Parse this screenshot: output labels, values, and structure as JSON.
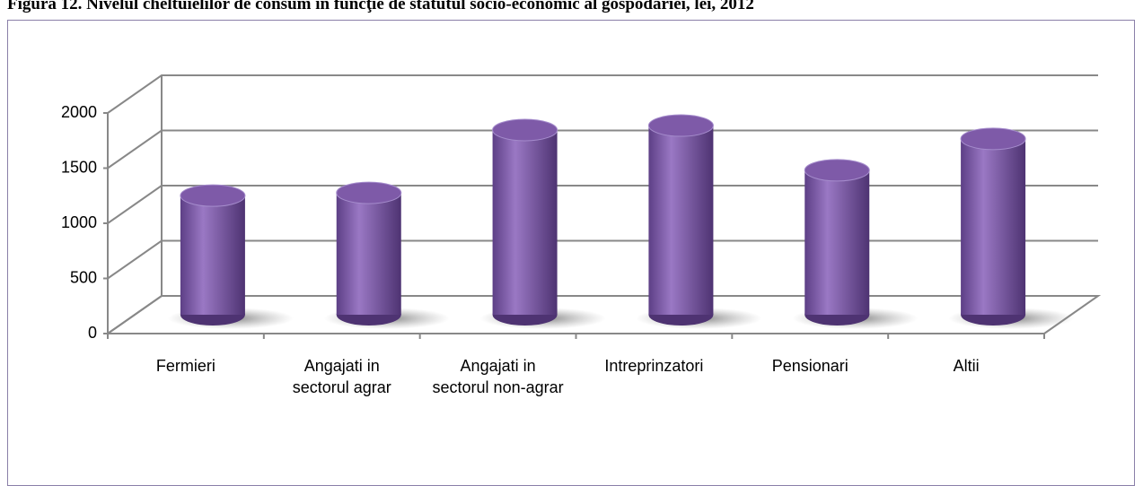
{
  "chart_data": {
    "type": "bar3d",
    "title": "Figura 12. Nivelul cheltuielilor de consum în funcţie de statutul socio-economic al gospodăriei, lei, 2012",
    "categories": [
      "Fermieri",
      "Angajati in sectorul agrar",
      "Angajati in sectorul non-agrar",
      "Intreprinzatori",
      "Pensionari",
      "Altii"
    ],
    "values": [
      1080,
      1105,
      1675,
      1715,
      1310,
      1595
    ],
    "color": "#7e5aa8",
    "ylim": [
      0,
      2000
    ],
    "yticks": [
      0,
      500,
      1000,
      1500,
      2000
    ],
    "grid": true
  }
}
